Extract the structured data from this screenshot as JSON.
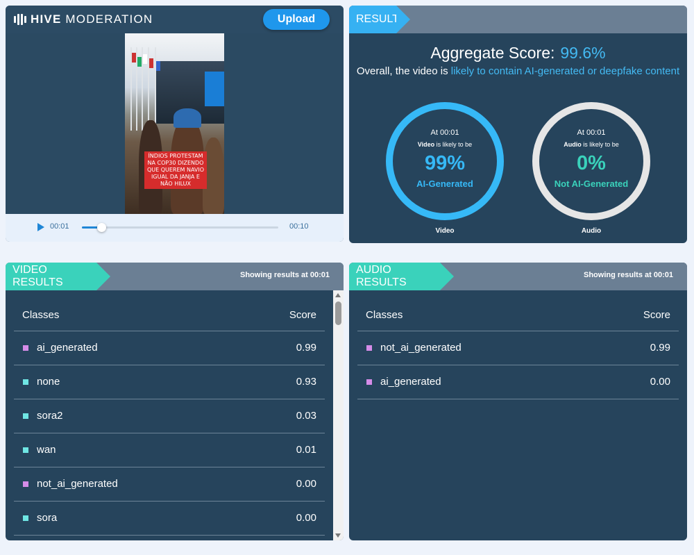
{
  "app": {
    "logo_bold": "HIVE",
    "logo_light": "MODERATION",
    "upload_label": "Upload"
  },
  "video": {
    "caption": "ÍNDIOS PROTESTAM NA COP30 DIZENDO QUE QUEREM NAVIO IGUAL DA JANJA E NÃO HILUX",
    "current_time": "00:01",
    "duration": "00:10",
    "progress": 0.1
  },
  "result": {
    "tab_label": "RESULT",
    "aggregate_label": "Aggregate Score:",
    "aggregate_value": "99.6%",
    "overall_prefix": "Overall, the video is",
    "overall_highlight": "likely to contain AI-generated or deepfake content",
    "video_gauge": {
      "at": "At 00:01",
      "subject": "Video",
      "likely": "is likely to be",
      "percent": "99%",
      "label": "AI-Generated",
      "caption": "Video",
      "color": "#36b9f7"
    },
    "audio_gauge": {
      "at": "At 00:01",
      "subject": "Audio",
      "likely": "is likely to be",
      "percent": "0%",
      "label": "Not AI-Generated",
      "caption": "Audio",
      "color": "#3ad2bb"
    }
  },
  "video_results": {
    "tab_label": "VIDEO RESULTS",
    "showing_prefix": "Showing results at",
    "showing_time": "00:01",
    "col_classes": "Classes",
    "col_score": "Score",
    "rows": [
      {
        "name": "ai_generated",
        "score": "0.99",
        "color": "#d58ce8"
      },
      {
        "name": "none",
        "score": "0.93",
        "color": "#6fe6e4"
      },
      {
        "name": "sora2",
        "score": "0.03",
        "color": "#6fe6e4"
      },
      {
        "name": "wan",
        "score": "0.01",
        "color": "#6fe6e4"
      },
      {
        "name": "not_ai_generated",
        "score": "0.00",
        "color": "#d58ce8"
      },
      {
        "name": "sora",
        "score": "0.00",
        "color": "#6fe6e4"
      }
    ]
  },
  "audio_results": {
    "tab_label": "AUDIO RESULTS",
    "showing_prefix": "Showing results at",
    "showing_time": "00:01",
    "col_classes": "Classes",
    "col_score": "Score",
    "rows": [
      {
        "name": "not_ai_generated",
        "score": "0.99",
        "color": "#d58ce8"
      },
      {
        "name": "ai_generated",
        "score": "0.00",
        "color": "#d58ce8"
      }
    ]
  }
}
